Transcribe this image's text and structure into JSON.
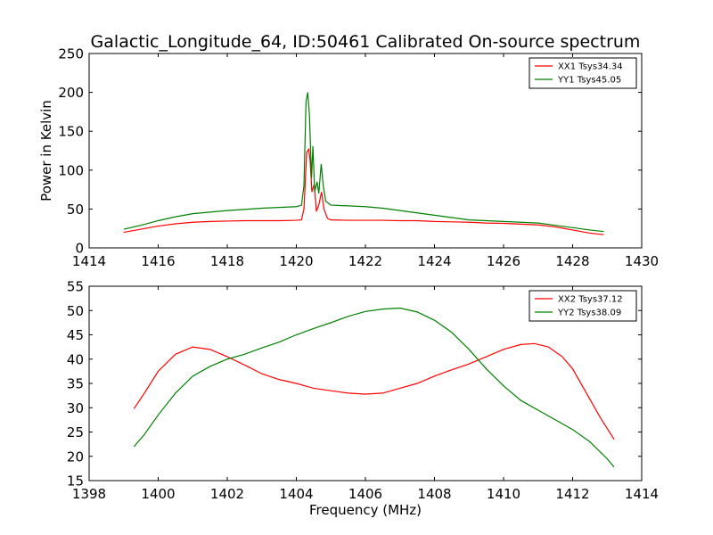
{
  "figure": {
    "title": "Galactic_Longitude_64, ID:50461 Calibrated On-source spectrum"
  },
  "chart_data": [
    {
      "type": "line",
      "ylabel": "Power in Kelvin",
      "xlabel": "",
      "xlim": [
        1414,
        1430
      ],
      "ylim": [
        0,
        250
      ],
      "xticks": [
        "1414",
        "1416",
        "1418",
        "1420",
        "1422",
        "1424",
        "1426",
        "1428",
        "1430"
      ],
      "yticks": [
        "0",
        "50",
        "100",
        "150",
        "200",
        "250"
      ],
      "grid": false,
      "legend_position": "top-right",
      "series": [
        {
          "name": "XX1 Tsys34.34",
          "color": "#ff0000",
          "points": [
            [
              1415.0,
              20
            ],
            [
              1415.5,
              24
            ],
            [
              1416.0,
              28
            ],
            [
              1416.5,
              31
            ],
            [
              1417.0,
              33
            ],
            [
              1417.5,
              34
            ],
            [
              1418.0,
              34.5
            ],
            [
              1418.5,
              35
            ],
            [
              1419.0,
              35
            ],
            [
              1419.5,
              35
            ],
            [
              1420.0,
              35.5
            ],
            [
              1420.15,
              36
            ],
            [
              1420.22,
              50
            ],
            [
              1420.3,
              123
            ],
            [
              1420.36,
              127
            ],
            [
              1420.4,
              112
            ],
            [
              1420.45,
              72
            ],
            [
              1420.52,
              82
            ],
            [
              1420.58,
              47
            ],
            [
              1420.65,
              55
            ],
            [
              1420.73,
              72
            ],
            [
              1420.8,
              50
            ],
            [
              1420.9,
              38
            ],
            [
              1421.0,
              36
            ],
            [
              1421.5,
              35.5
            ],
            [
              1422.0,
              35.5
            ],
            [
              1422.5,
              35.5
            ],
            [
              1423.0,
              35
            ],
            [
              1423.5,
              35
            ],
            [
              1424.0,
              34
            ],
            [
              1424.5,
              33.5
            ],
            [
              1425.0,
              33
            ],
            [
              1425.5,
              32
            ],
            [
              1426.0,
              31.5
            ],
            [
              1426.5,
              30.5
            ],
            [
              1427.0,
              29.5
            ],
            [
              1427.5,
              27
            ],
            [
              1428.0,
              23
            ],
            [
              1428.5,
              19
            ],
            [
              1428.9,
              17
            ]
          ]
        },
        {
          "name": "YY1 Tsys45.05",
          "color": "#008000",
          "points": [
            [
              1415.0,
              24
            ],
            [
              1415.5,
              29
            ],
            [
              1416.0,
              35
            ],
            [
              1416.5,
              40
            ],
            [
              1417.0,
              44
            ],
            [
              1417.5,
              46
            ],
            [
              1418.0,
              48
            ],
            [
              1418.5,
              49.5
            ],
            [
              1419.0,
              51
            ],
            [
              1419.5,
              52
            ],
            [
              1420.0,
              53
            ],
            [
              1420.15,
              55
            ],
            [
              1420.22,
              80
            ],
            [
              1420.28,
              188
            ],
            [
              1420.33,
              200
            ],
            [
              1420.38,
              170
            ],
            [
              1420.44,
              90
            ],
            [
              1420.48,
              131
            ],
            [
              1420.53,
              72
            ],
            [
              1420.6,
              85
            ],
            [
              1420.65,
              70
            ],
            [
              1420.72,
              108
            ],
            [
              1420.78,
              80
            ],
            [
              1420.85,
              60
            ],
            [
              1421.0,
              55
            ],
            [
              1421.5,
              54
            ],
            [
              1422.0,
              53
            ],
            [
              1422.5,
              51
            ],
            [
              1423.0,
              48
            ],
            [
              1423.5,
              45
            ],
            [
              1424.0,
              42
            ],
            [
              1424.5,
              39
            ],
            [
              1425.0,
              36
            ],
            [
              1425.5,
              35
            ],
            [
              1426.0,
              34
            ],
            [
              1426.5,
              33
            ],
            [
              1427.0,
              32
            ],
            [
              1427.5,
              29
            ],
            [
              1428.0,
              26
            ],
            [
              1428.5,
              23
            ],
            [
              1428.9,
              21
            ]
          ]
        }
      ]
    },
    {
      "type": "line",
      "ylabel": "",
      "xlabel": "Frequency (MHz)",
      "xlim": [
        1398,
        1414
      ],
      "ylim": [
        15,
        55
      ],
      "xticks": [
        "1398",
        "1400",
        "1402",
        "1404",
        "1406",
        "1408",
        "1410",
        "1412",
        "1414"
      ],
      "yticks": [
        "15",
        "20",
        "25",
        "30",
        "35",
        "40",
        "45",
        "50",
        "55"
      ],
      "grid": false,
      "legend_position": "top-right",
      "series": [
        {
          "name": "XX2 Tsys37.12",
          "color": "#ff0000",
          "points": [
            [
              1399.3,
              29.8
            ],
            [
              1399.6,
              33
            ],
            [
              1400.0,
              37.5
            ],
            [
              1400.5,
              41
            ],
            [
              1401.0,
              42.5
            ],
            [
              1401.5,
              42
            ],
            [
              1402.0,
              40.5
            ],
            [
              1402.5,
              38.8
            ],
            [
              1403.0,
              37
            ],
            [
              1403.5,
              35.8
            ],
            [
              1404.0,
              35
            ],
            [
              1404.5,
              34
            ],
            [
              1405.0,
              33.5
            ],
            [
              1405.5,
              33
            ],
            [
              1406.0,
              32.8
            ],
            [
              1406.5,
              33
            ],
            [
              1407.0,
              34
            ],
            [
              1407.5,
              35
            ],
            [
              1408.0,
              36.5
            ],
            [
              1408.5,
              37.8
            ],
            [
              1409.0,
              39
            ],
            [
              1409.5,
              40.5
            ],
            [
              1410.0,
              42
            ],
            [
              1410.5,
              43
            ],
            [
              1410.9,
              43.2
            ],
            [
              1411.3,
              42.5
            ],
            [
              1411.7,
              40.5
            ],
            [
              1412.0,
              38
            ],
            [
              1412.4,
              33
            ],
            [
              1412.8,
              28
            ],
            [
              1413.2,
              23.5
            ]
          ]
        },
        {
          "name": "YY2 Tsys38.09",
          "color": "#008000",
          "points": [
            [
              1399.3,
              22
            ],
            [
              1399.6,
              24.5
            ],
            [
              1400.0,
              28.5
            ],
            [
              1400.5,
              33
            ],
            [
              1401.0,
              36.5
            ],
            [
              1401.5,
              38.5
            ],
            [
              1402.0,
              40
            ],
            [
              1402.5,
              41
            ],
            [
              1403.0,
              42.3
            ],
            [
              1403.5,
              43.5
            ],
            [
              1404.0,
              45
            ],
            [
              1404.5,
              46.3
            ],
            [
              1405.0,
              47.5
            ],
            [
              1405.5,
              48.8
            ],
            [
              1406.0,
              49.8
            ],
            [
              1406.5,
              50.3
            ],
            [
              1407.0,
              50.5
            ],
            [
              1407.5,
              49.7
            ],
            [
              1408.0,
              48
            ],
            [
              1408.5,
              45.5
            ],
            [
              1409.0,
              42
            ],
            [
              1409.5,
              38
            ],
            [
              1410.0,
              34.5
            ],
            [
              1410.5,
              31.5
            ],
            [
              1411.0,
              29.5
            ],
            [
              1411.5,
              27.5
            ],
            [
              1412.0,
              25.5
            ],
            [
              1412.5,
              23
            ],
            [
              1413.0,
              19.5
            ],
            [
              1413.2,
              17.8
            ]
          ]
        }
      ]
    }
  ]
}
